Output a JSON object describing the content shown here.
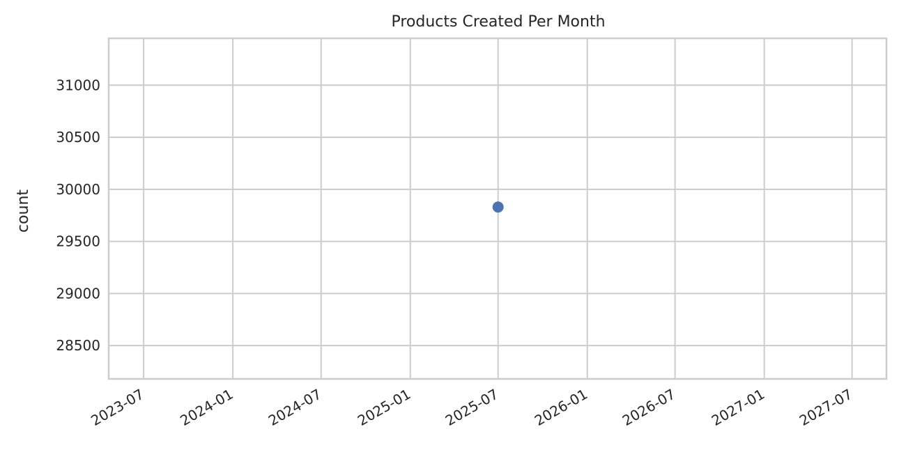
{
  "chart_data": {
    "type": "scatter",
    "title": "Products Created Per Month",
    "xlabel": "",
    "ylabel": "count",
    "x_ticks": [
      "2023-07",
      "2024-01",
      "2024-07",
      "2025-01",
      "2025-07",
      "2026-01",
      "2026-07",
      "2027-01",
      "2027-07"
    ],
    "y_ticks": [
      28500,
      29000,
      29500,
      30000,
      30500,
      31000
    ],
    "xlim": [
      "2023-04-20",
      "2027-09-10"
    ],
    "ylim": [
      28180,
      31450
    ],
    "grid": true,
    "legend": "none",
    "series": [
      {
        "points": [
          {
            "x": "2025-07",
            "y": 29830
          }
        ]
      }
    ],
    "colors": {
      "point": "#4c72b0",
      "grid": "#cccccc",
      "spine": "#cccccc",
      "text": "#262626"
    }
  }
}
